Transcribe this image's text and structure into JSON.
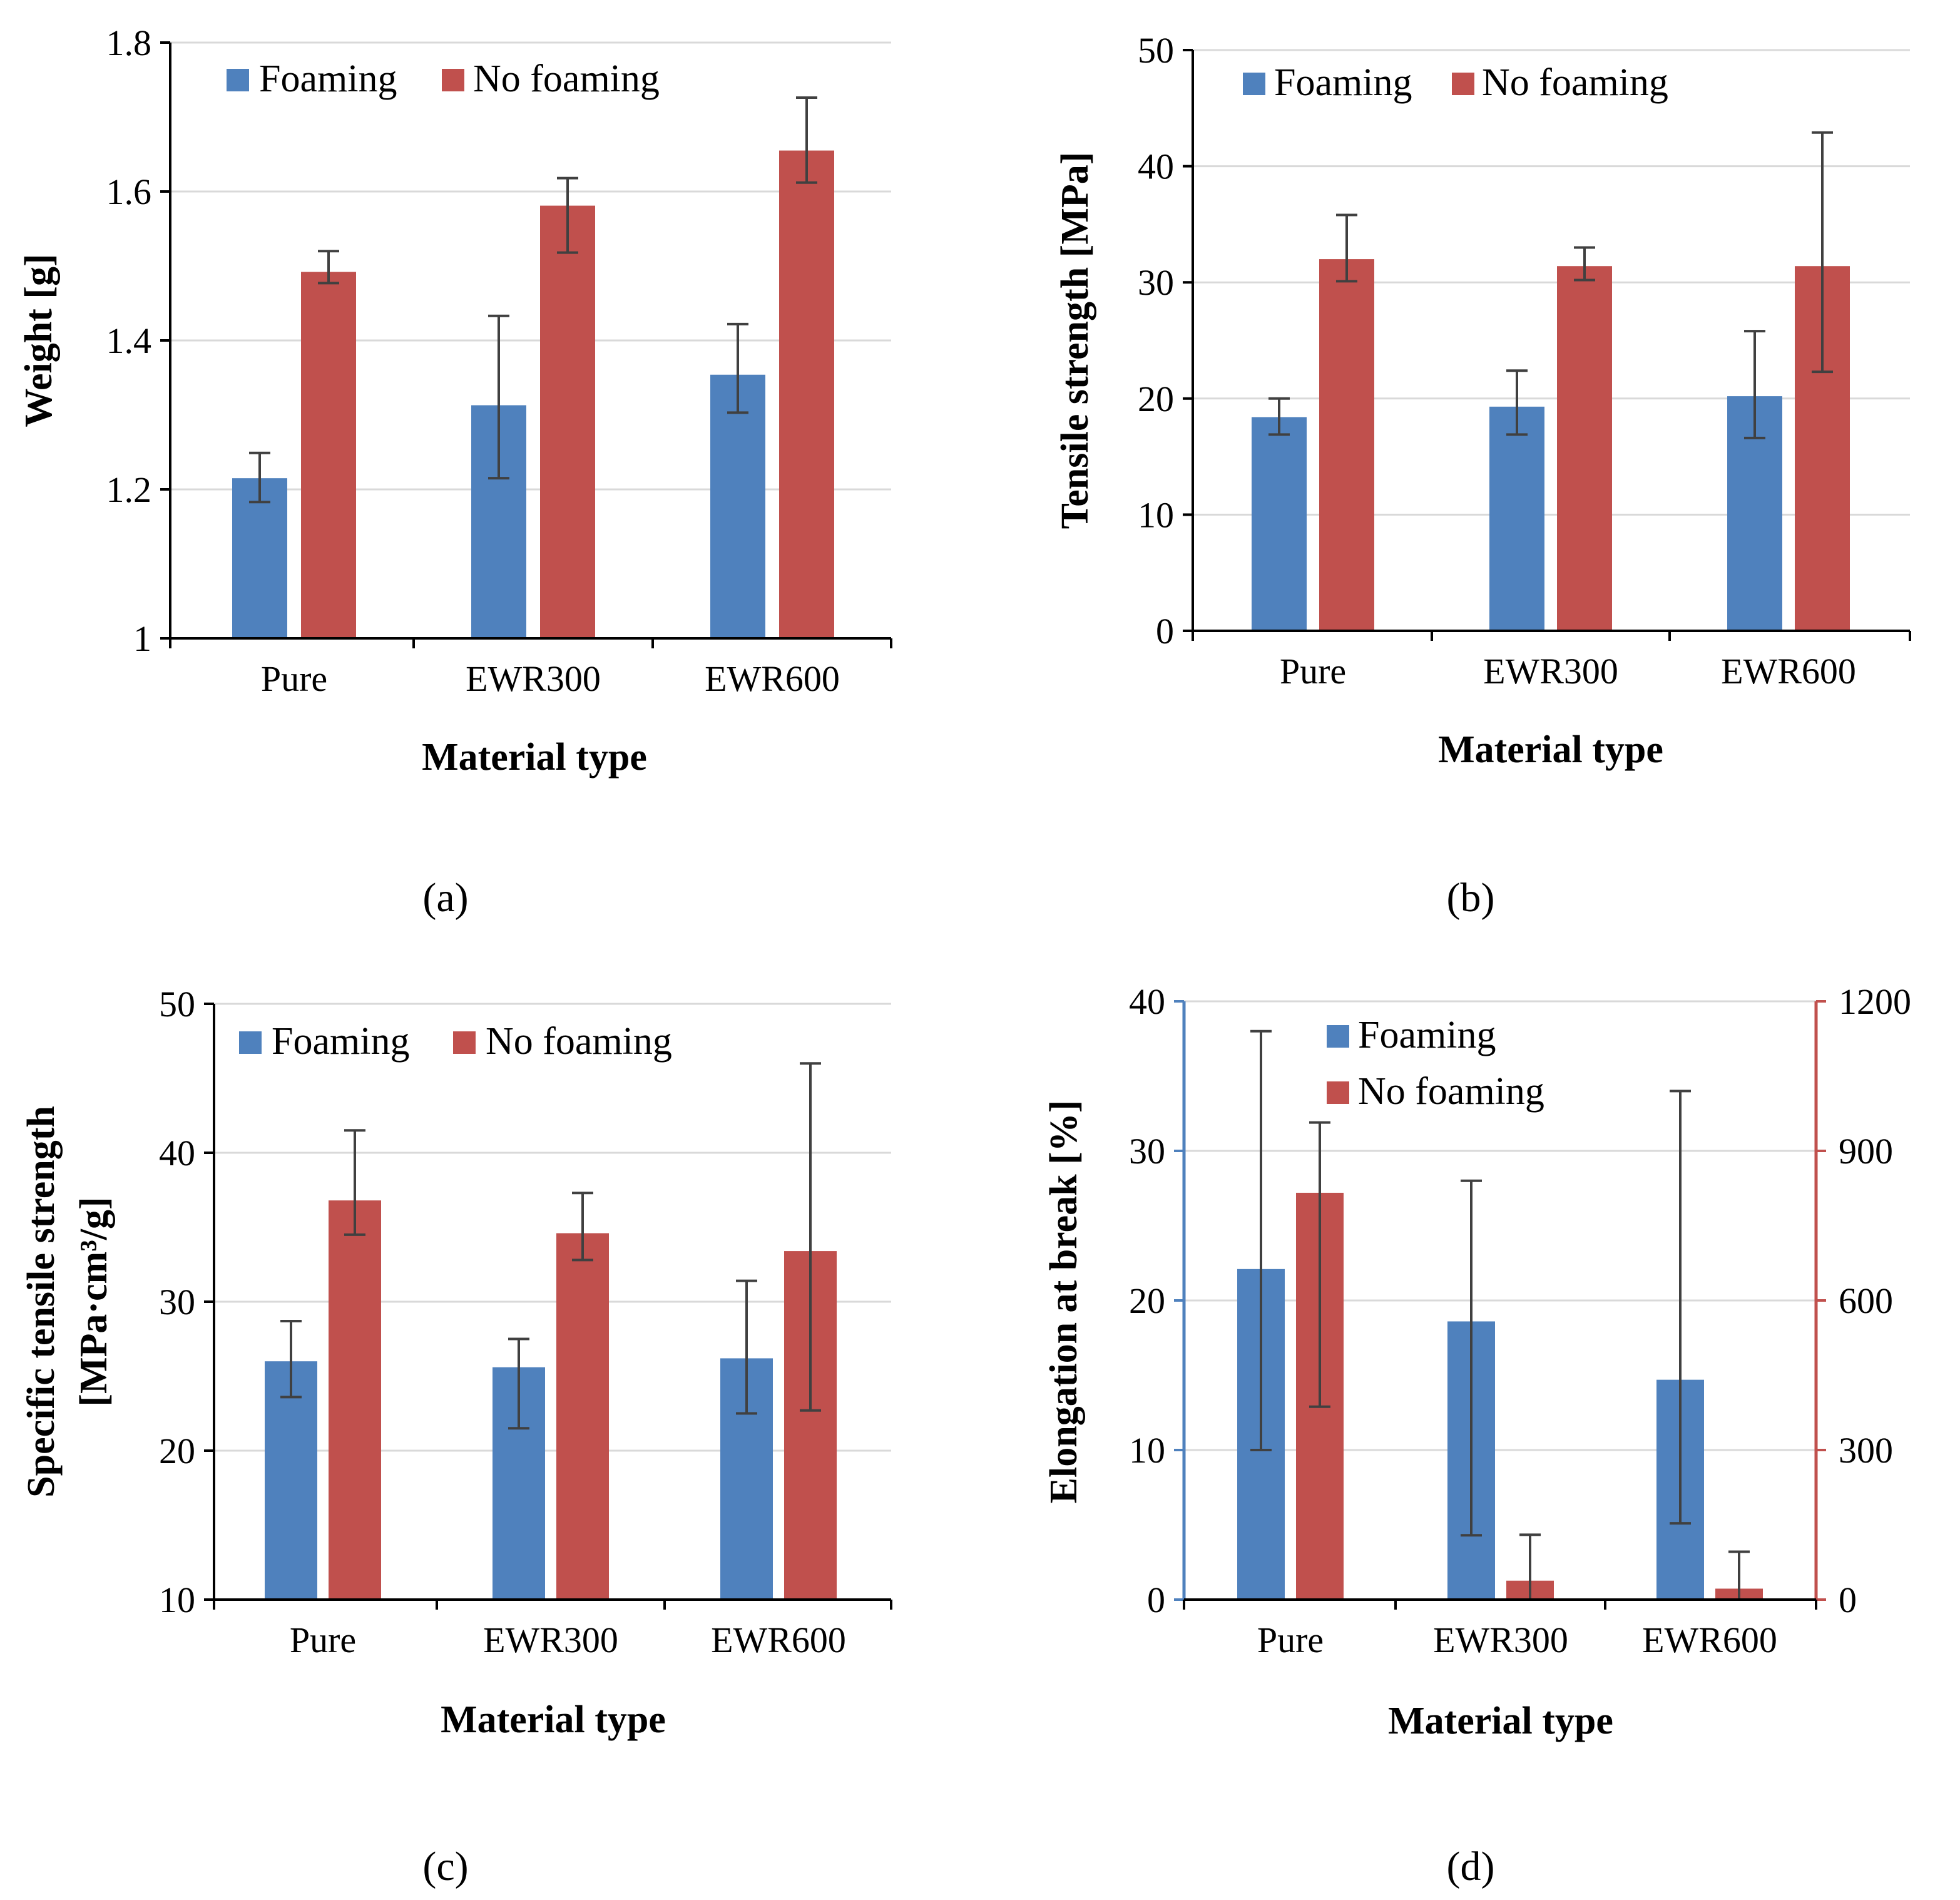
{
  "colors": {
    "foaming": "#4f81bd",
    "no_foaming": "#c0504d",
    "grid": "#d9d9d9",
    "axis": "#000000",
    "errorbar": "#404040",
    "left_axis_d": "#4f81bd",
    "right_axis_d": "#c0504d"
  },
  "chart_data": [
    {
      "type": "bar",
      "panel_label": "(a)",
      "categories": [
        "Pure",
        "EWR300",
        "EWR600"
      ],
      "xlabel": "Material type",
      "ylabel": "Weight [g]",
      "ylim": [
        1,
        1.8
      ],
      "yticks": [
        1,
        1.2,
        1.4,
        1.6,
        1.8
      ],
      "ytick_labels": [
        "1",
        "1.2",
        "1.4",
        "1.6",
        "1.8"
      ],
      "grid": true,
      "legend_position": "top-left",
      "series": [
        {
          "name": "Foaming",
          "values": [
            1.215,
            1.313,
            1.354
          ],
          "err_low": [
            1.183,
            1.215,
            1.303
          ],
          "err_high": [
            1.249,
            1.433,
            1.422
          ]
        },
        {
          "name": "No foaming",
          "values": [
            1.492,
            1.581,
            1.655
          ],
          "err_low": [
            1.477,
            1.518,
            1.612
          ],
          "err_high": [
            1.52,
            1.618,
            1.726
          ]
        }
      ]
    },
    {
      "type": "bar",
      "panel_label": "(b)",
      "categories": [
        "Pure",
        "EWR300",
        "EWR600"
      ],
      "xlabel": "Material type",
      "ylabel": "Tensile strength [MPa]",
      "ylim": [
        0,
        50
      ],
      "yticks": [
        0,
        10,
        20,
        30,
        40,
        50
      ],
      "ytick_labels": [
        "0",
        "10",
        "20",
        "30",
        "40",
        "50"
      ],
      "grid": true,
      "legend_position": "top-left",
      "series": [
        {
          "name": "Foaming",
          "values": [
            18.4,
            19.3,
            20.2
          ],
          "err_low": [
            16.9,
            16.9,
            16.6
          ],
          "err_high": [
            20.0,
            22.4,
            25.8
          ]
        },
        {
          "name": "No foaming",
          "values": [
            32.0,
            31.4,
            31.4
          ],
          "err_low": [
            30.1,
            30.2,
            22.3
          ],
          "err_high": [
            35.8,
            33.0,
            42.9
          ]
        }
      ]
    },
    {
      "type": "bar",
      "panel_label": "(c)",
      "categories": [
        "Pure",
        "EWR300",
        "EWR600"
      ],
      "xlabel": "Material type",
      "ylabel_line1": "Specific tensile strength",
      "ylabel_line2": "[MPa·cm³/g]",
      "ylim": [
        10,
        50
      ],
      "yticks": [
        10,
        20,
        30,
        40,
        50
      ],
      "ytick_labels": [
        "10",
        "20",
        "30",
        "40",
        "50"
      ],
      "grid": true,
      "legend_position": "top-left",
      "series": [
        {
          "name": "Foaming",
          "values": [
            26.0,
            25.6,
            26.2
          ],
          "err_low": [
            23.6,
            21.5,
            22.5
          ],
          "err_high": [
            28.7,
            27.5,
            31.4
          ]
        },
        {
          "name": "No foaming",
          "values": [
            36.8,
            34.6,
            33.4
          ],
          "err_low": [
            34.5,
            32.8,
            22.7
          ],
          "err_high": [
            41.5,
            37.3,
            46.0
          ]
        }
      ]
    },
    {
      "type": "bar",
      "panel_label": "(d)",
      "categories": [
        "Pure",
        "EWR300",
        "EWR600"
      ],
      "xlabel": "Material type",
      "ylabel": "Elongation at break [%]",
      "ylim": [
        0,
        40
      ],
      "yticks": [
        0,
        10,
        20,
        30,
        40
      ],
      "ytick_labels": [
        "0",
        "10",
        "20",
        "30",
        "40"
      ],
      "y2lim": [
        0,
        1200
      ],
      "y2ticks": [
        0,
        300,
        600,
        900,
        1200
      ],
      "y2tick_labels": [
        "0",
        "300",
        "600",
        "900",
        "1200"
      ],
      "grid": true,
      "legend_position": "top-center",
      "series": [
        {
          "name": "Foaming",
          "axis": "left",
          "values": [
            22.1,
            18.6,
            14.7
          ],
          "err_low": [
            10.0,
            4.3,
            5.1
          ],
          "err_high": [
            38.0,
            28.0,
            34.0
          ]
        },
        {
          "name": "No foaming",
          "axis": "right",
          "values": [
            816,
            38,
            22
          ],
          "err_low": [
            387,
            0,
            0
          ],
          "err_high": [
            957,
            130,
            96
          ]
        }
      ]
    }
  ]
}
